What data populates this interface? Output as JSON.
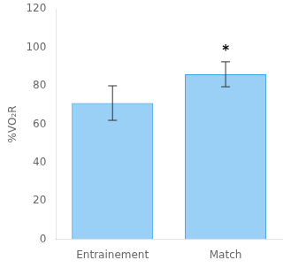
{
  "chart_data": {
    "type": "bar",
    "categories": [
      "Entrainement",
      "Match"
    ],
    "values": [
      71.0,
      86.0
    ],
    "errors": [
      9.0,
      6.5
    ],
    "ylabel": "%VO₂R",
    "ylim": [
      0,
      120
    ],
    "yticks": [
      0,
      20,
      40,
      60,
      80,
      100,
      120
    ],
    "grid": false,
    "annotations": [
      {
        "text": "*",
        "category": "Match"
      }
    ]
  }
}
